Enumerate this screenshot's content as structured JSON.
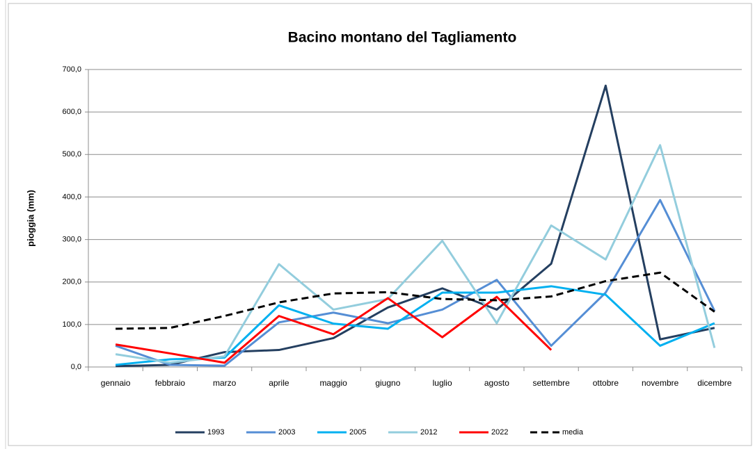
{
  "chart_data": {
    "type": "line",
    "title": "Bacino montano del Tagliamento",
    "y_label": "pioggia (mm)",
    "categories": [
      "gennaio",
      "febbraio",
      "marzo",
      "aprile",
      "maggio",
      "giugno",
      "luglio",
      "agosto",
      "settembre",
      "ottobre",
      "novembre",
      "dicembre"
    ],
    "series": [
      {
        "name": "1993",
        "color": "#243f60",
        "line_style": "solid",
        "values": [
          2,
          5,
          35,
          40,
          68,
          140,
          185,
          135,
          243,
          662,
          65,
          92
        ]
      },
      {
        "name": "2003",
        "color": "#558ed5",
        "line_style": "solid",
        "values": [
          50,
          5,
          3,
          105,
          128,
          103,
          135,
          205,
          50,
          175,
          393,
          132
        ]
      },
      {
        "name": "2005",
        "color": "#00b0f0",
        "line_style": "solid",
        "values": [
          5,
          18,
          22,
          145,
          102,
          90,
          175,
          175,
          190,
          170,
          50,
          103
        ]
      },
      {
        "name": "2012",
        "color": "#93cddd",
        "line_style": "solid",
        "values": [
          30,
          10,
          25,
          242,
          135,
          160,
          297,
          103,
          333,
          253,
          522,
          45
        ]
      },
      {
        "name": "2022",
        "color": "#ff0000",
        "line_style": "solid",
        "values": [
          53,
          32,
          10,
          120,
          77,
          162,
          70,
          165,
          40,
          null,
          null,
          null
        ]
      },
      {
        "name": "media",
        "color": "#000000",
        "line_style": "dashed",
        "values": [
          90,
          92,
          120,
          152,
          173,
          176,
          160,
          157,
          166,
          202,
          222,
          130
        ]
      }
    ],
    "ylim": [
      0,
      700
    ],
    "yticks": [
      {
        "value": 0,
        "label": "0,0"
      },
      {
        "value": 100,
        "label": "100,0"
      },
      {
        "value": 200,
        "label": "200,0"
      },
      {
        "value": 300,
        "label": "300,0"
      },
      {
        "value": 400,
        "label": "400,0"
      },
      {
        "value": 500,
        "label": "500,0"
      },
      {
        "value": 600,
        "label": "600,0"
      },
      {
        "value": 700,
        "label": "700,0"
      }
    ],
    "grid": true,
    "legend": "bottom"
  }
}
